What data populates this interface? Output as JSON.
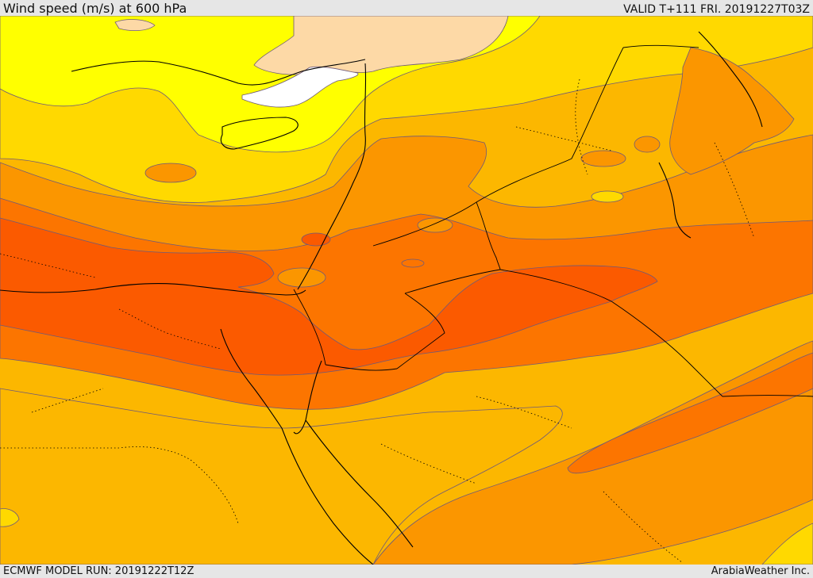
{
  "header": {
    "title": "Wind speed (m/s) at 600 hPa",
    "valid_time": "VALID T+111 FRI. 20191227T03Z"
  },
  "footer": {
    "model_run": "ECMWF MODEL RUN: 20191222T12Z",
    "credit": "ArabiaWeather Inc."
  },
  "palette": {
    "calm_white": "#ffffff",
    "peach": "#fdd9a6",
    "yellow": "#ffff00",
    "gold": "#ffd900",
    "amber": "#fcb700",
    "orange": "#fb9600",
    "dark_orange": "#fc7500",
    "red_orange": "#fb5a00",
    "contour_line": "#6e5a7a",
    "coastline": "#000000"
  },
  "map": {
    "region": "Eastern Mediterranean and Middle East",
    "field": "wind speed",
    "level": "600 hPa"
  }
}
